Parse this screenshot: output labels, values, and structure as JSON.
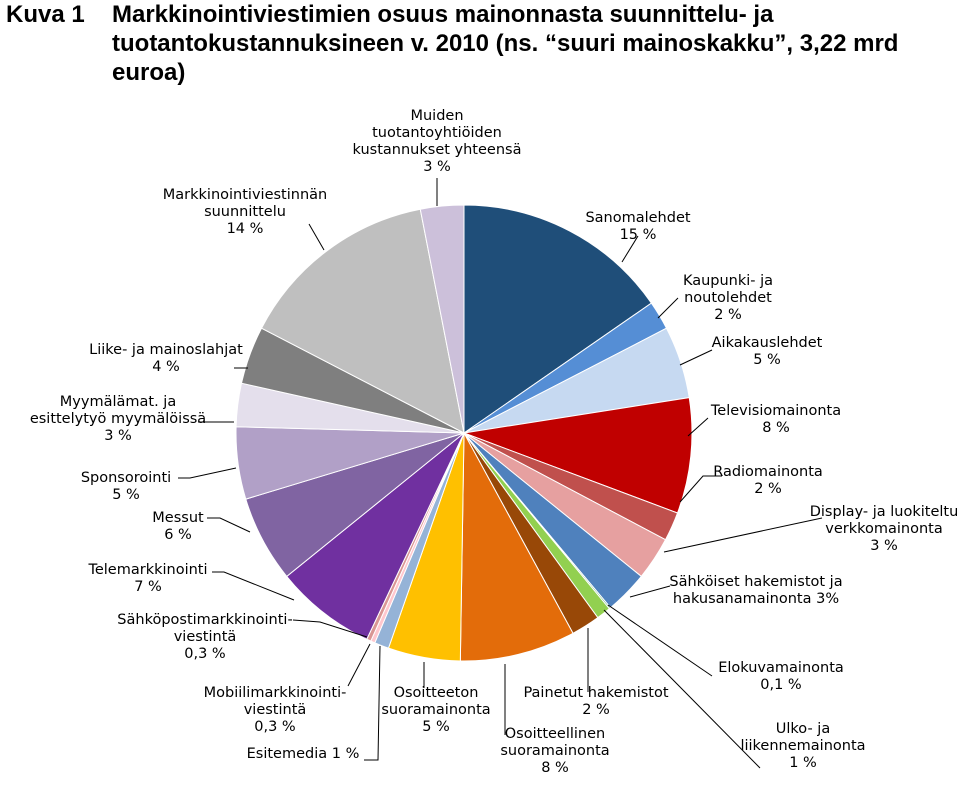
{
  "figure": {
    "label": "Kuva 1",
    "title": "Markkinointiviestimien osuus mainonnasta suunnittelu- ja tuotantokustannuksineen v. 2010 (ns. “suuri mainoskakku”, 3,22 mrd euroa)"
  },
  "chart_data": {
    "type": "pie",
    "title": "Markkinointiviestimien osuus mainonnasta suunnittelu- ja tuotantokustannuksineen v. 2010 (ns. “suuri mainoskakku”, 3,22 mrd euroa)",
    "unit": "%",
    "start": "12 o'clock",
    "direction": "clockwise",
    "slices": [
      {
        "name": "Sanomalehdet",
        "value": 15,
        "label": "15 %",
        "color": "#1f4e79"
      },
      {
        "name": "Kaupunki- ja noutolehdet",
        "value": 2,
        "label": "2 %",
        "color": "#558ed5"
      },
      {
        "name": "Aikakauslehdet",
        "value": 5,
        "label": "5 %",
        "color": "#c6d9f1"
      },
      {
        "name": "Televisiomainonta",
        "value": 8,
        "label": "8 %",
        "color": "#c00000"
      },
      {
        "name": "Radiomainonta",
        "value": 2,
        "label": "2 %",
        "color": "#c0504d"
      },
      {
        "name": "Display- ja luokiteltu verkkomainonta",
        "value": 3,
        "label": "3 %",
        "color": "#e6a0a0"
      },
      {
        "name": "Sähköiset hakemistot ja hakusanamainonta",
        "value": 3,
        "label": "3%",
        "color": "#4f81bd"
      },
      {
        "name": "Elokuvamainonta",
        "value": 0.1,
        "label": "0,1 %",
        "color": "#4aa06a"
      },
      {
        "name": "Ulko- ja liikennemainonta",
        "value": 1,
        "label": "1 %",
        "color": "#92d050"
      },
      {
        "name": "Painetut hakemistot",
        "value": 2,
        "label": "2 %",
        "color": "#984807"
      },
      {
        "name": "Osoitteellinen suoramainonta",
        "value": 8,
        "label": "8 %",
        "color": "#e36c0a"
      },
      {
        "name": "Osoitteeton suoramainonta",
        "value": 5,
        "label": "5 %",
        "color": "#ffc000"
      },
      {
        "name": "Esitemedia",
        "value": 1,
        "label": "1 %",
        "color": "#95b3d7"
      },
      {
        "name": "Mobiilimarkkinointiviestintä",
        "value": 0.3,
        "label": "0,3 %",
        "color": "#ffc7ce"
      },
      {
        "name": "Sähköpostimarkkinointiviestintä",
        "value": 0.3,
        "label": "0,3 %",
        "color": "#d99694"
      },
      {
        "name": "Telemarkkinointi",
        "value": 7,
        "label": "7 %",
        "color": "#7030a0"
      },
      {
        "name": "Messut",
        "value": 6,
        "label": "6 %",
        "color": "#8064a2"
      },
      {
        "name": "Sponsorointi",
        "value": 5,
        "label": "5 %",
        "color": "#b1a0c7"
      },
      {
        "name": "Myymälämat. ja esittelytyö myymälöissä",
        "value": 3,
        "label": "3 %",
        "color": "#e4dfec"
      },
      {
        "name": "Liike- ja mainoslahjat",
        "value": 4,
        "label": "4 %",
        "color": "#7f7f7f"
      },
      {
        "name": "Markkinointiviestinnän suunnittelu",
        "value": 14,
        "label": "14 %",
        "color": "#bfbfbf"
      },
      {
        "name": "Muiden tuotantoyhtiöiden kustannukset yhteensä",
        "value": 3,
        "label": "3 %",
        "color": "#ccc0da"
      }
    ],
    "label_lines": [
      [
        "Sanomalehdet",
        "15 %"
      ],
      [
        "Kaupunki- ja",
        "noutolehdet",
        "2 %"
      ],
      [
        "Aikakauslehdet",
        "5 %"
      ],
      [
        "Televisiomainonta",
        "8 %"
      ],
      [
        "Radiomainonta",
        "2 %"
      ],
      [
        "Display- ja luokiteltu",
        "verkkomainonta",
        "3 %"
      ],
      [
        "Sähköiset hakemistot ja",
        "hakusanamainonta 3%"
      ],
      [
        "Elokuvamainonta",
        "0,1 %"
      ],
      [
        "Ulko- ja",
        "liikennemainonta",
        "1 %"
      ],
      [
        "Painetut hakemistot",
        "2 %"
      ],
      [
        "Osoitteellinen",
        "suoramainonta",
        "8 %"
      ],
      [
        "Osoitteeton",
        "suoramainonta",
        "5 %"
      ],
      [
        "Esitemedia 1 %"
      ],
      [
        "Mobiilimarkkinointi-",
        "viestintä",
        "0,3 %"
      ],
      [
        "Sähköpostimarkkinointi-",
        "viestintä",
        "0,3 %"
      ],
      [
        "Telemarkkinointi",
        "7 %"
      ],
      [
        "Messut",
        "6 %"
      ],
      [
        "Sponsorointi",
        "5 %"
      ],
      [
        "Myymälämat. ja",
        "esittelytyö myymälöissä",
        "3 %"
      ],
      [
        "Liike- ja mainoslahjat",
        "4 %"
      ],
      [
        "Markkinointiviestinnän",
        "suunnittelu",
        "14 %"
      ],
      [
        "Muiden",
        "tuotantoyhtiöiden",
        "kustannukset yhteensä",
        "3 %"
      ]
    ],
    "legend": "none",
    "data_labels": "outside with leader lines"
  }
}
